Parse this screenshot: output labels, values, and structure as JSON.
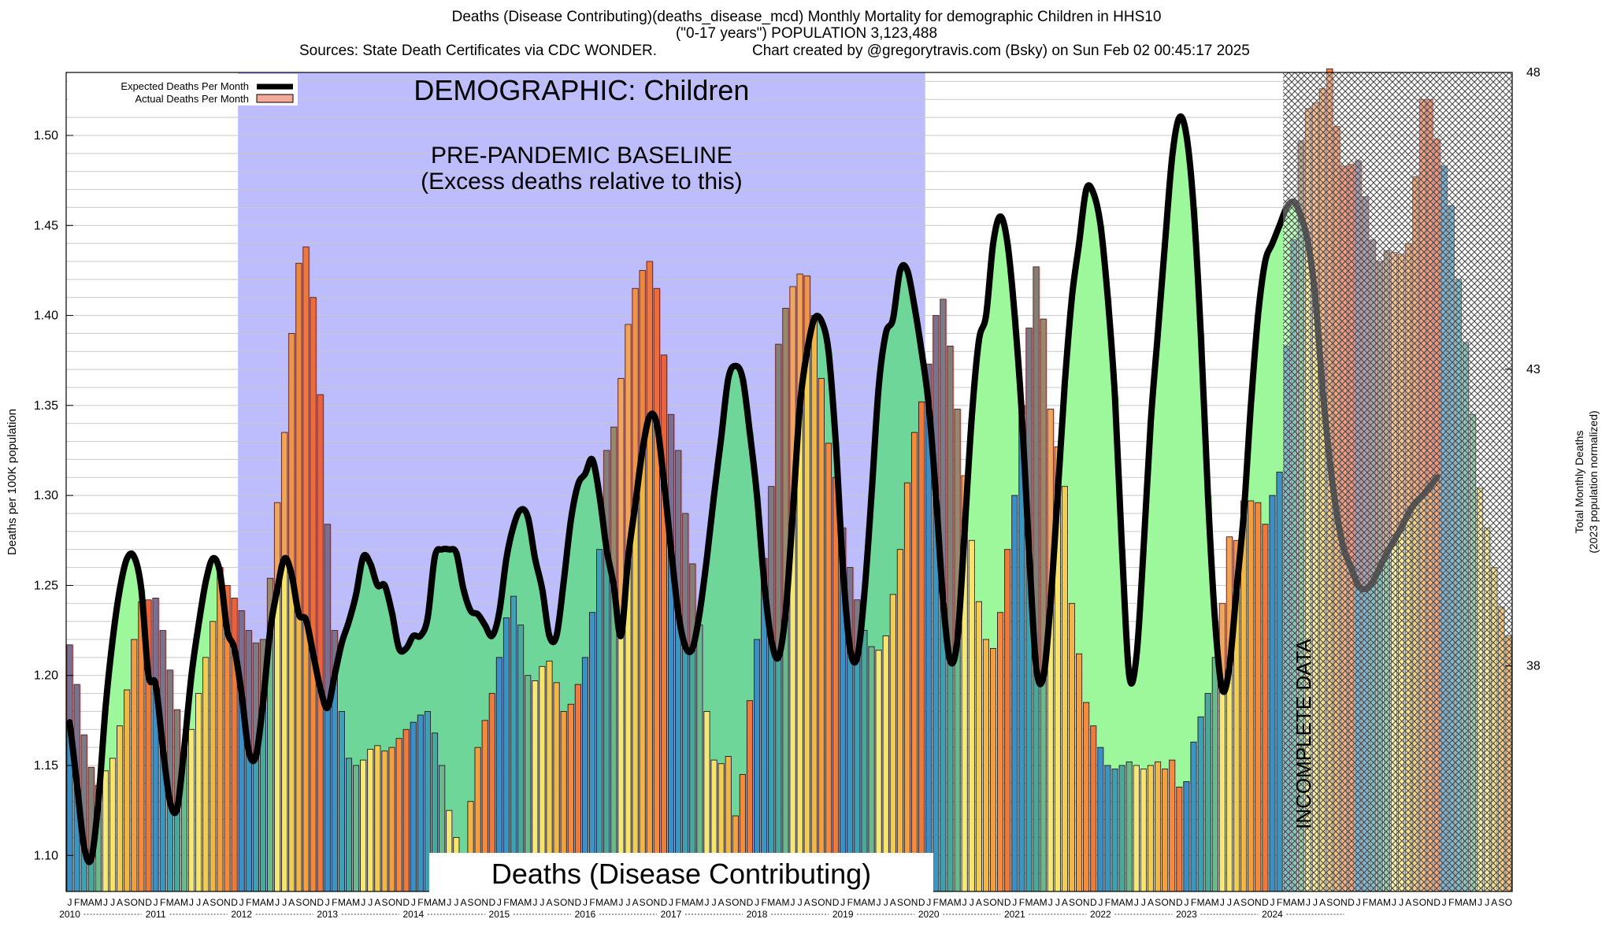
{
  "header": {
    "line1": "Deaths (Disease Contributing)(deaths_disease_mcd) Monthly Mortality for demographic Children in HHS10",
    "line2": "(\"0-17 years\") POPULATION 3,123,488",
    "line3_left": "Sources: State Death Certificates via CDC WONDER.",
    "line3_right": "Chart created by @gregorytravis.com (Bsky) on Sun Feb 02 00:45:17 2025"
  },
  "chart_data": {
    "type": "bar",
    "title": "Deaths (Disease Contributing)(deaths_disease_mcd) Monthly Mortality for demographic Children in HHS10",
    "ylabel": "Deaths per 100K population",
    "y2label_line1": "Total Monthly Deaths",
    "y2label_line2": "(2023 population normalized)",
    "ylim": [
      1.08,
      1.535
    ],
    "y2lim": [
      34.2,
      48.0
    ],
    "y_ticks": [
      1.1,
      1.15,
      1.2,
      1.25,
      1.3,
      1.35,
      1.4,
      1.45,
      1.5
    ],
    "y_tick_labels": [
      "1.10",
      "1.15",
      "1.20",
      "1.25",
      "1.30",
      "1.35",
      "1.40",
      "1.45",
      "1.50"
    ],
    "y2_ticks": [
      38,
      43,
      48
    ],
    "y2_tick_labels": [
      "38",
      "43",
      "48"
    ],
    "month_letters": [
      "J",
      "F",
      "M",
      "A",
      "M",
      "J",
      "J",
      "A",
      "S",
      "O",
      "N",
      "D"
    ],
    "years": [
      "2010",
      "2011",
      "2012",
      "2013",
      "2014",
      "2015",
      "2016",
      "2017",
      "2018",
      "2019",
      "2020",
      "2021",
      "2022",
      "2023",
      "2024"
    ],
    "grid": true,
    "legend_position": "top-left",
    "legend": [
      "Expected Deaths Per Month",
      "Actual Deaths Per Month"
    ],
    "annotations": {
      "demographic": "DEMOGRAPHIC: Children",
      "baseline_line1": "PRE-PANDEMIC BASELINE",
      "baseline_line2": "(Excess deaths relative to this)",
      "metric": "Deaths (Disease Contributing)",
      "incomplete": "INCOMPLETE DATA"
    },
    "baseline_range_months": [
      24,
      120
    ],
    "incomplete_from_month": 170,
    "series": [
      {
        "name": "Actual Deaths Per Month",
        "values": [
          1.217,
          1.195,
          1.167,
          1.149,
          1.139,
          1.147,
          1.154,
          1.172,
          1.192,
          1.22,
          1.241,
          1.242,
          1.243,
          1.225,
          1.203,
          1.181,
          1.16,
          1.17,
          1.19,
          1.21,
          1.23,
          1.26,
          1.25,
          1.243,
          1.236,
          1.225,
          1.218,
          1.22,
          1.254,
          1.296,
          1.335,
          1.39,
          1.429,
          1.438,
          1.41,
          1.356,
          1.284,
          1.225,
          1.18,
          1.154,
          1.15,
          1.153,
          1.159,
          1.161,
          1.158,
          1.16,
          1.165,
          1.17,
          1.174,
          1.178,
          1.18,
          1.168,
          1.15,
          1.125,
          1.11,
          1.1,
          1.13,
          1.16,
          1.175,
          1.19,
          1.21,
          1.232,
          1.244,
          1.228,
          1.2,
          1.197,
          1.205,
          1.208,
          1.196,
          1.18,
          1.184,
          1.195,
          1.21,
          1.235,
          1.27,
          1.325,
          1.338,
          1.365,
          1.395,
          1.415,
          1.425,
          1.43,
          1.415,
          1.378,
          1.345,
          1.325,
          1.29,
          1.262,
          1.228,
          1.18,
          1.153,
          1.151,
          1.155,
          1.122,
          1.145,
          1.186,
          1.22,
          1.265,
          1.305,
          1.384,
          1.404,
          1.416,
          1.423,
          1.422,
          1.4,
          1.365,
          1.329,
          1.31,
          1.282,
          1.26,
          1.242,
          1.225,
          1.216,
          1.214,
          1.222,
          1.245,
          1.27,
          1.307,
          1.335,
          1.352,
          1.373,
          1.4,
          1.409,
          1.383,
          1.348,
          1.311,
          1.275,
          1.241,
          1.22,
          1.215,
          1.235,
          1.27,
          1.3,
          1.35,
          1.393,
          1.427,
          1.398,
          1.348,
          1.327,
          1.305,
          1.24,
          1.212,
          1.185,
          1.172,
          1.16,
          1.15,
          1.148,
          1.15,
          1.152,
          1.15,
          1.148,
          1.15,
          1.152,
          1.148,
          1.153,
          1.138,
          1.141,
          1.163,
          1.177,
          1.19,
          1.21,
          1.24,
          1.277,
          1.275,
          1.297,
          1.297,
          1.296,
          1.284,
          1.3,
          1.313,
          1.383,
          1.442,
          1.497,
          1.515,
          1.518,
          1.526,
          1.537,
          1.505,
          1.483,
          1.484,
          1.486,
          1.466,
          1.442,
          1.43,
          1.436,
          1.435,
          1.434,
          1.44,
          1.477,
          1.52,
          1.52,
          1.498,
          1.483,
          1.461,
          1.42,
          1.385,
          1.345,
          1.304,
          1.282,
          1.26,
          1.238,
          1.222
        ]
      },
      {
        "name": "Expected Deaths Per Month",
        "values": [
          1.174,
          1.14,
          1.105,
          1.098,
          1.13,
          1.182,
          1.22,
          1.248,
          1.265,
          1.266,
          1.248,
          1.2,
          1.195,
          1.16,
          1.13,
          1.126,
          1.16,
          1.2,
          1.228,
          1.252,
          1.265,
          1.257,
          1.225,
          1.215,
          1.19,
          1.158,
          1.155,
          1.185,
          1.225,
          1.248,
          1.265,
          1.256,
          1.234,
          1.231,
          1.212,
          1.193,
          1.182,
          1.2,
          1.218,
          1.23,
          1.245,
          1.266,
          1.262,
          1.25,
          1.25,
          1.235,
          1.215,
          1.215,
          1.222,
          1.222,
          1.232,
          1.266,
          1.27,
          1.27,
          1.268,
          1.248,
          1.236,
          1.234,
          1.228,
          1.222,
          1.235,
          1.265,
          1.283,
          1.292,
          1.288,
          1.265,
          1.248,
          1.222,
          1.222,
          1.252,
          1.286,
          1.306,
          1.312,
          1.32,
          1.3,
          1.27,
          1.25,
          1.222,
          1.265,
          1.295,
          1.325,
          1.344,
          1.34,
          1.308,
          1.27,
          1.235,
          1.216,
          1.215,
          1.235,
          1.265,
          1.3,
          1.332,
          1.365,
          1.372,
          1.365,
          1.335,
          1.3,
          1.252,
          1.22,
          1.21,
          1.235,
          1.29,
          1.35,
          1.38,
          1.398,
          1.397,
          1.38,
          1.33,
          1.26,
          1.215,
          1.21,
          1.245,
          1.3,
          1.36,
          1.39,
          1.398,
          1.425,
          1.425,
          1.405,
          1.38,
          1.35,
          1.3,
          1.242,
          1.208,
          1.22,
          1.28,
          1.343,
          1.386,
          1.4,
          1.44,
          1.455,
          1.44,
          1.4,
          1.345,
          1.27,
          1.205,
          1.199,
          1.24,
          1.3,
          1.362,
          1.41,
          1.44,
          1.47,
          1.468,
          1.45,
          1.41,
          1.355,
          1.27,
          1.2,
          1.21,
          1.27,
          1.34,
          1.39,
          1.44,
          1.488,
          1.51,
          1.5,
          1.46,
          1.39,
          1.3,
          1.23,
          1.192,
          1.205,
          1.248,
          1.29,
          1.35,
          1.4,
          1.43,
          1.44,
          1.45,
          1.46,
          1.463,
          1.455,
          1.44,
          1.41,
          1.36,
          1.32,
          1.29,
          1.27,
          1.26,
          1.25,
          1.248,
          1.252,
          1.26,
          1.268,
          1.275,
          1.282,
          1.29,
          1.296,
          1.3,
          1.305,
          1.31
        ]
      }
    ]
  }
}
